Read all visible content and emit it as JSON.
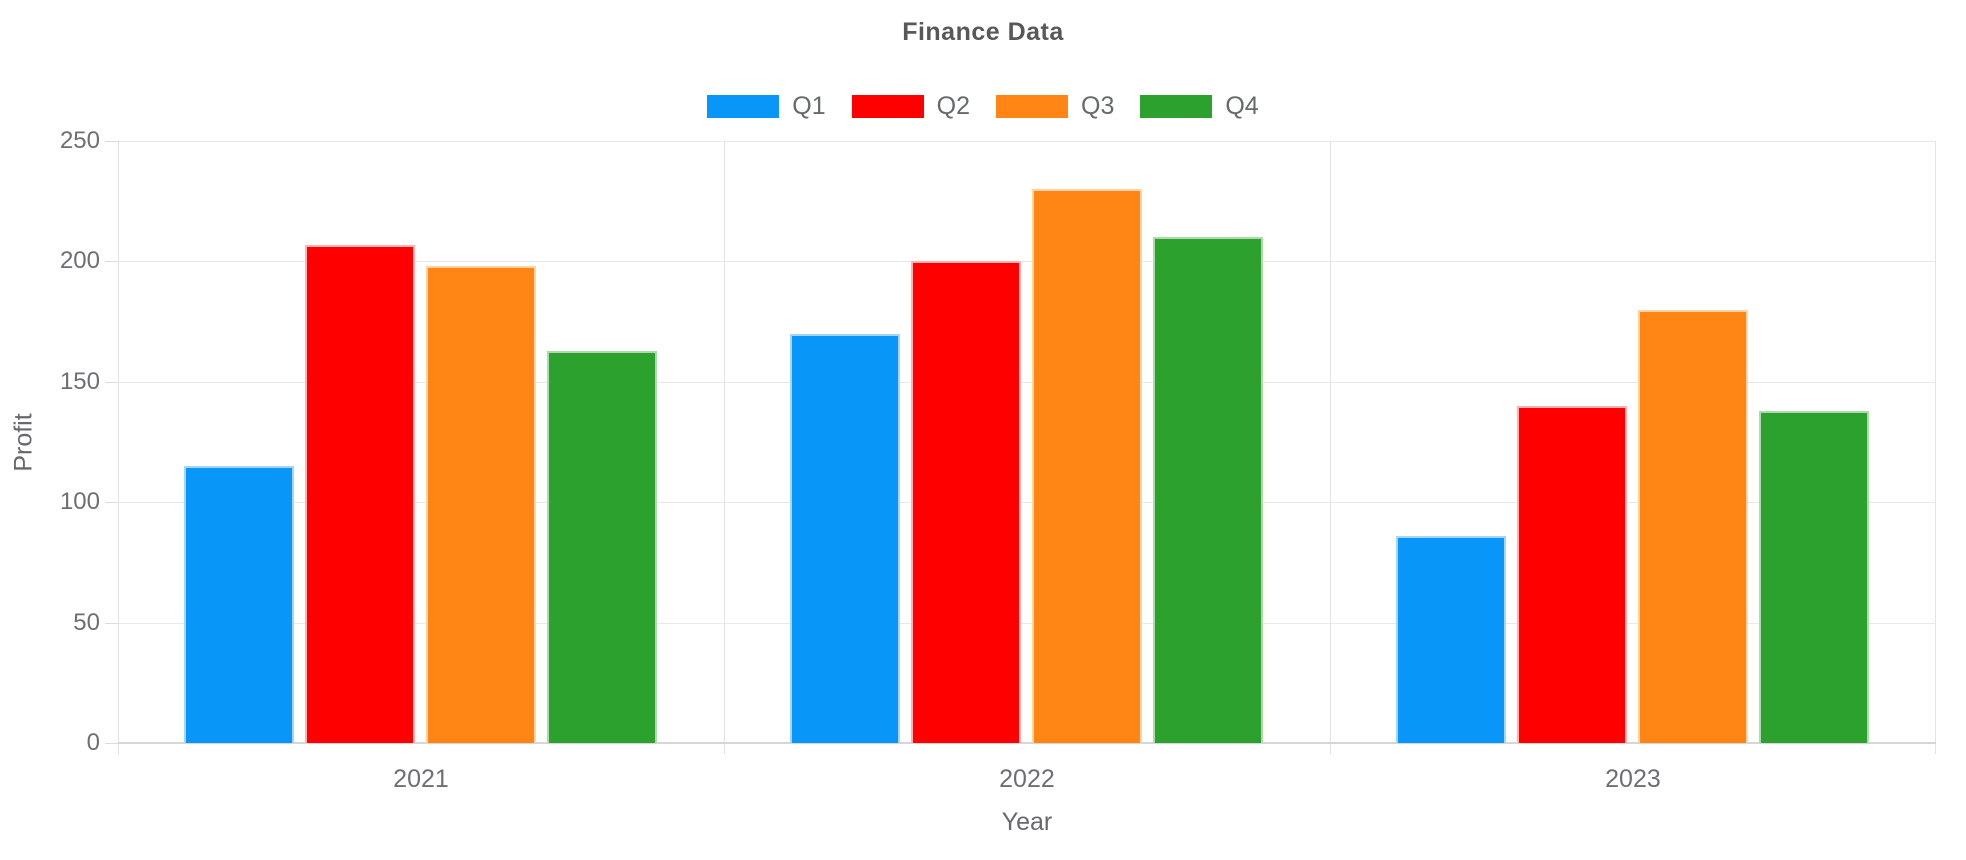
{
  "chart_data": {
    "type": "bar",
    "title": "Finance Data",
    "xlabel": "Year",
    "ylabel": "Profit",
    "categories": [
      "2021",
      "2022",
      "2023"
    ],
    "series": [
      {
        "name": "Q1",
        "color": "#0996F9",
        "border_color": "#A6D4FB",
        "values": [
          115,
          170,
          86
        ]
      },
      {
        "name": "Q2",
        "color": "#FE0000",
        "border_color": "#FFB1B1",
        "values": [
          207,
          200,
          140
        ]
      },
      {
        "name": "Q3",
        "color": "#FF8514",
        "border_color": "#FFD3A4",
        "values": [
          198,
          230,
          180
        ]
      },
      {
        "name": "Q4",
        "color": "#2DA12D",
        "border_color": "#AFDAAF",
        "values": [
          163,
          210,
          138
        ]
      }
    ],
    "ylim": [
      0,
      250
    ],
    "y_tick_step": 50,
    "y_tick_labels": [
      "0",
      "50",
      "100",
      "150",
      "200",
      "250"
    ],
    "grid": "on",
    "legend_position": "top-center",
    "gridline_color": "#e9e9e9",
    "axis_line_color": "#d6d6d6",
    "text_color": "#6e6f72",
    "title_color": "#58585a"
  }
}
